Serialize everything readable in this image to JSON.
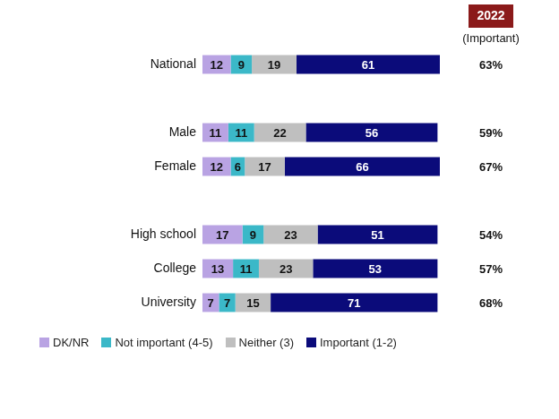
{
  "chart_data": {
    "type": "bar",
    "orientation": "horizontal",
    "stacked": true,
    "data_labels": true,
    "tick_labels": "y",
    "grid": false,
    "legend": "bottom",
    "xlim": [
      0,
      101
    ],
    "categories": [
      "National",
      null,
      "Male",
      "Female",
      null,
      "High school",
      "College",
      "University"
    ],
    "series": [
      {
        "name": "DK/NR",
        "color": "#b9a3e3",
        "values": [
          12,
          null,
          11,
          12,
          null,
          17,
          13,
          7
        ]
      },
      {
        "name": "Not important (4-5)",
        "color": "#3bb8c8",
        "values": [
          9,
          null,
          11,
          6,
          null,
          9,
          11,
          7
        ]
      },
      {
        "name": "Neither (3)",
        "color": "#bfbfbf",
        "values": [
          19,
          null,
          22,
          17,
          null,
          23,
          23,
          15
        ]
      },
      {
        "name": "Important (1-2)",
        "color": "#0b0b7a",
        "values": [
          61,
          null,
          56,
          66,
          null,
          51,
          53,
          71
        ]
      }
    ],
    "side_column": {
      "title": "2022",
      "subtitle": "(Important)",
      "values": [
        63,
        null,
        59,
        67,
        null,
        54,
        57,
        68
      ],
      "value_labels": [
        "63%",
        null,
        "59%",
        "67%",
        null,
        "54%",
        "57%",
        "68%"
      ]
    }
  }
}
